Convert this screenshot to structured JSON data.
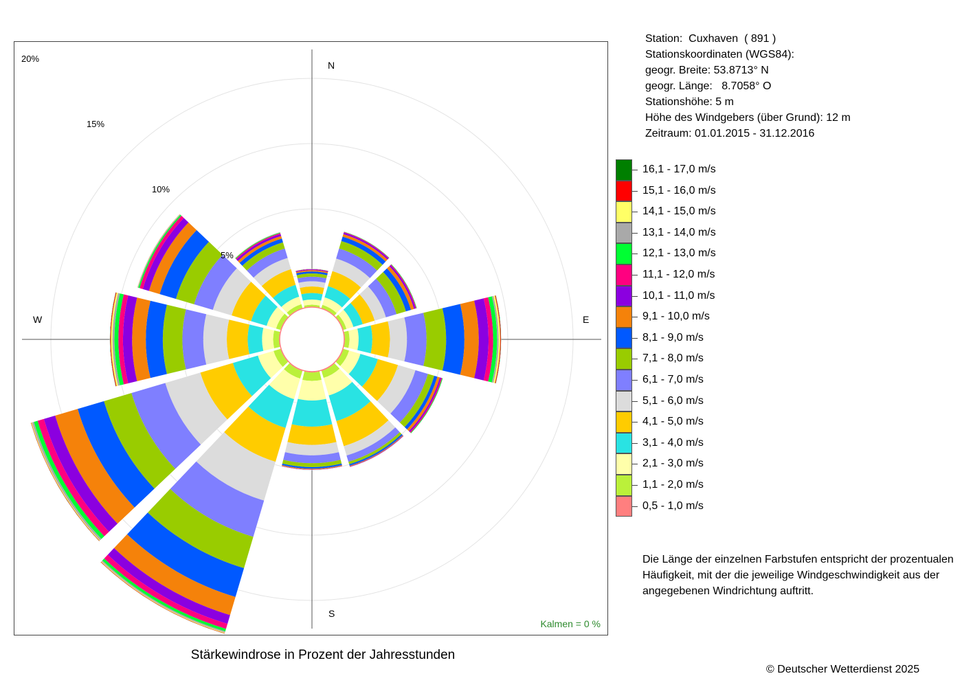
{
  "info": {
    "station": "Station:  Cuxhaven  ( 891 )",
    "coords_title": "Stationskoordinaten (WGS84):",
    "lat": "geogr. Breite: 53.8713° N",
    "lon": "geogr. Länge:   8.7058° O",
    "height": "Stationshöhe: 5 m",
    "anemometer": "Höhe des Windgebers (über Grund): 12 m",
    "period": "Zeitraum: 01.01.2015 - 31.12.2016"
  },
  "compass": {
    "n": "N",
    "e": "E",
    "s": "S",
    "w": "W"
  },
  "ring_labels": [
    "5%",
    "10%",
    "15%",
    "20%"
  ],
  "calm_label": "Kalmen  =  0 %",
  "caption": "Stärkewindrose in Prozent der Jahresstunden",
  "note": "Die Länge der einzelnen Farbstufen entspricht der prozentualen Häufigkeit, mit der die jeweilige Windgeschwindigkeit aus der angegebenen Windrichtung auftritt.",
  "copyright": "© Deutscher Wetterdienst  2025",
  "legend": [
    {
      "label": "16,1 - 17,0 m/s",
      "color": "#007f00"
    },
    {
      "label": "15,1 - 16,0 m/s",
      "color": "#ff0000"
    },
    {
      "label": "14,1 - 15,0 m/s",
      "color": "#ffff66"
    },
    {
      "label": "13,1 - 14,0 m/s",
      "color": "#a9a9a9"
    },
    {
      "label": "12,1 - 13,0 m/s",
      "color": "#00ff33"
    },
    {
      "label": "11,1 - 12,0 m/s",
      "color": "#ff0080"
    },
    {
      "label": "10,1 - 11,0 m/s",
      "color": "#8b00e0"
    },
    {
      "label": "9,1 - 10,0 m/s",
      "color": "#f5820a"
    },
    {
      "label": "8,1 - 9,0 m/s",
      "color": "#0059ff"
    },
    {
      "label": "7,1 - 8,0 m/s",
      "color": "#99cc00"
    },
    {
      "label": "6,1 - 7,0 m/s",
      "color": "#7f7fff"
    },
    {
      "label": "5,1 - 6,0 m/s",
      "color": "#dcdcdc"
    },
    {
      "label": "4,1 - 5,0 m/s",
      "color": "#ffcc00"
    },
    {
      "label": "3,1 - 4,0 m/s",
      "color": "#29e3e3"
    },
    {
      "label": "2,1 - 3,0 m/s",
      "color": "#ffffaa"
    },
    {
      "label": "1,1 - 2,0 m/s",
      "color": "#bbf03a"
    },
    {
      "label": "0,5 - 1,0 m/s",
      "color": "#ff7f7f"
    }
  ],
  "chart_data": {
    "type": "polar_stacked_bar",
    "title": "Stärkewindrose in Prozent der Jahresstunden",
    "unit": "%",
    "rlim": [
      0,
      20
    ],
    "ring_ticks": [
      5,
      10,
      15,
      20
    ],
    "inner_radius_pct": 1.0,
    "calm_pct": 0,
    "bins": [
      "0,5 - 1,0 m/s",
      "1,1 - 2,0 m/s",
      "2,1 - 3,0 m/s",
      "3,1 - 4,0 m/s",
      "4,1 - 5,0 m/s",
      "5,1 - 6,0 m/s",
      "6,1 - 7,0 m/s",
      "7,1 - 8,0 m/s",
      "8,1 - 9,0 m/s",
      "9,1 - 10,0 m/s",
      "10,1 - 11,0 m/s",
      "11,1 - 12,0 m/s",
      "12,1 - 13,0 m/s",
      "13,1 - 14,0 m/s",
      "14,1 - 15,0 m/s",
      "15,1 - 16,0 m/s",
      "16,1 - 17,0 m/s"
    ],
    "sectors": [
      {
        "dir": 0,
        "values": [
          0.03,
          0.15,
          0.4,
          0.5,
          0.5,
          0.4,
          0.35,
          0.25,
          0.15,
          0.1,
          0.05,
          0.03,
          0.02,
          0.01,
          0,
          0,
          0
        ]
      },
      {
        "dir": 30,
        "values": [
          0.04,
          0.25,
          0.6,
          0.9,
          1.2,
          1.0,
          0.8,
          0.6,
          0.35,
          0.2,
          0.12,
          0.05,
          0.03,
          0.01,
          0,
          0,
          0
        ]
      },
      {
        "dir": 60,
        "values": [
          0.04,
          0.25,
          0.55,
          0.75,
          0.95,
          0.9,
          0.85,
          0.75,
          0.4,
          0.25,
          0.12,
          0.06,
          0.04,
          0.01,
          0,
          0,
          0
        ]
      },
      {
        "dir": 90,
        "values": [
          0.05,
          0.35,
          0.7,
          1.05,
          1.35,
          1.3,
          1.5,
          1.5,
          1.4,
          1.1,
          0.75,
          0.35,
          0.3,
          0.12,
          0.12,
          0.05,
          0.03
        ]
      },
      {
        "dir": 120,
        "values": [
          0.05,
          0.45,
          0.9,
          1.4,
          1.6,
          1.4,
          1.0,
          0.5,
          0.25,
          0.2,
          0.1,
          0.08,
          0.05,
          0.02,
          0,
          0,
          0
        ]
      },
      {
        "dir": 150,
        "values": [
          0.06,
          0.55,
          1.4,
          2.05,
          2.0,
          0.75,
          0.5,
          0.2,
          0.12,
          0.05,
          0.03,
          0.02,
          0.01,
          0,
          0,
          0,
          0
        ]
      },
      {
        "dir": 180,
        "values": [
          0.06,
          0.65,
          1.5,
          2.0,
          1.4,
          0.8,
          0.6,
          0.3,
          0.12,
          0.06,
          0.03,
          0.01,
          0,
          0,
          0,
          0,
          0
        ]
      },
      {
        "dir": 210,
        "values": [
          0.06,
          0.6,
          1.65,
          2.3,
          2.7,
          3.1,
          2.9,
          2.5,
          2.3,
          1.45,
          0.7,
          0.4,
          0.2,
          0.1,
          0.05,
          0.03,
          0.02
        ]
      },
      {
        "dir": 240,
        "values": [
          0.05,
          0.55,
          1.25,
          2.0,
          2.6,
          2.8,
          2.7,
          2.2,
          2.1,
          1.8,
          0.9,
          0.5,
          0.3,
          0.15,
          0.05,
          0.03,
          0.02
        ]
      },
      {
        "dir": 270,
        "values": [
          0.05,
          0.45,
          0.85,
          1.1,
          1.6,
          1.8,
          1.6,
          1.5,
          1.3,
          1.05,
          0.7,
          0.35,
          0.3,
          0.15,
          0.12,
          0.05,
          0.03
        ]
      },
      {
        "dir": 300,
        "values": [
          0.05,
          0.35,
          0.75,
          1.25,
          1.55,
          1.5,
          1.5,
          1.45,
          1.3,
          0.85,
          0.5,
          0.25,
          0.1,
          0.05,
          0.02,
          0.01,
          0.01
        ]
      },
      {
        "dir": 330,
        "values": [
          0.04,
          0.3,
          0.6,
          0.95,
          1.25,
          0.9,
          0.75,
          0.5,
          0.3,
          0.2,
          0.15,
          0.08,
          0.05,
          0.03,
          0.02,
          0,
          0
        ]
      }
    ]
  }
}
